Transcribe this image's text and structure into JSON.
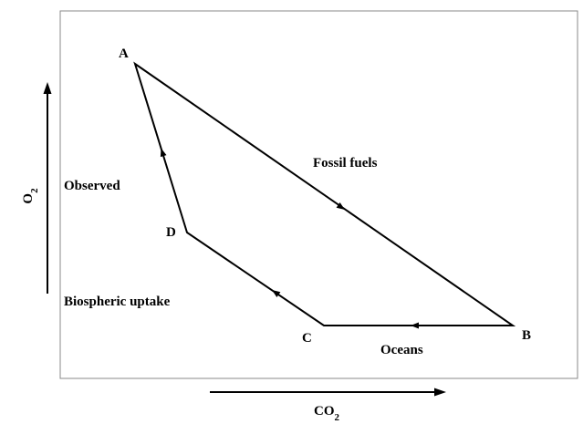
{
  "points": {
    "a": "A",
    "b": "B",
    "c": "C",
    "d": "D"
  },
  "paths": {
    "fossil": "Fossil fuels",
    "oceans": "Oceans",
    "biosphere": "Biospheric uptake",
    "observed": "Observed"
  },
  "axes": {
    "y": {
      "base": "O",
      "sub": "2"
    },
    "x": {
      "base": "CO",
      "sub": "2"
    }
  }
}
